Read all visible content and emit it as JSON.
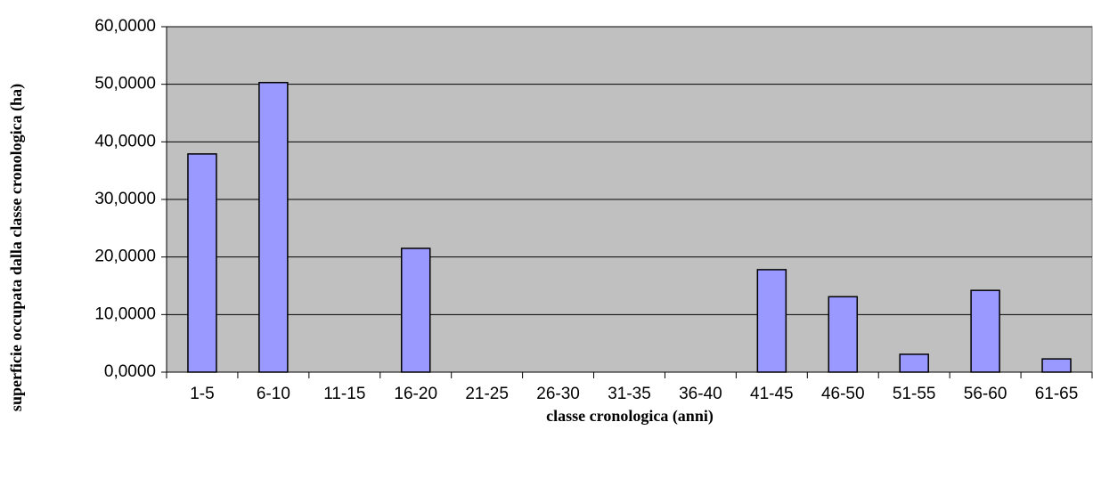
{
  "chart_data": {
    "type": "bar",
    "x_label": "classe cronologica (anni)",
    "y_label": "superficie occupata dalla classe cronologica (ha)",
    "categories": [
      "1-5",
      "6-10",
      "11-15",
      "16-20",
      "21-25",
      "26-30",
      "31-35",
      "36-40",
      "41-45",
      "46-50",
      "51-55",
      "56-60",
      "61-65"
    ],
    "values": [
      37.9,
      50.3,
      0,
      21.5,
      0,
      0,
      0,
      0,
      17.8,
      13.1,
      3.1,
      14.2,
      2.3
    ],
    "color": "#9999ff",
    "ylim": [
      0,
      60
    ],
    "yticks": [
      {
        "value": 0,
        "label": "0,0000"
      },
      {
        "value": 10,
        "label": "10,0000"
      },
      {
        "value": 20,
        "label": "20,0000"
      },
      {
        "value": 30,
        "label": "30,0000"
      },
      {
        "value": 40,
        "label": "40,0000"
      },
      {
        "value": 50,
        "label": "50,0000"
      },
      {
        "value": 60,
        "label": "60,0000"
      }
    ],
    "grid": true
  }
}
